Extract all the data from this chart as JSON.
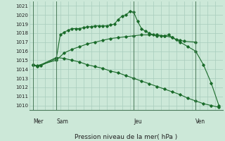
{
  "xlabel": "Pression niveau de la mer( hPa )",
  "bg_color": "#cce8d8",
  "grid_color": "#a8ccbc",
  "line_color": "#1a6b2a",
  "vline_color": "#4a7a5a",
  "ylim": [
    1009.5,
    1021.5
  ],
  "yticks": [
    1010,
    1011,
    1012,
    1013,
    1014,
    1015,
    1016,
    1017,
    1018,
    1019,
    1020,
    1021
  ],
  "xlim": [
    0,
    25
  ],
  "day_labels": [
    "Mer",
    "Sam",
    "Jeu",
    "Ven"
  ],
  "day_positions": [
    0.5,
    3.5,
    13.5,
    21.5
  ],
  "vline_positions": [
    0.5,
    3.5,
    13.5,
    21.5
  ],
  "series1_x": [
    0.5,
    1.0,
    1.5,
    3.5,
    4.0,
    4.5,
    5.0,
    5.5,
    6.0,
    6.5,
    7.0,
    7.5,
    8.0,
    8.5,
    9.0,
    9.5,
    10.0,
    10.5,
    11.0,
    11.5,
    12.0,
    12.5,
    13.0,
    13.5,
    14.0,
    14.5,
    15.0,
    15.5,
    16.0,
    16.5,
    17.0,
    17.5,
    18.0,
    18.5,
    19.0,
    19.5,
    20.0,
    21.5
  ],
  "series1_y": [
    1014.5,
    1014.3,
    1014.4,
    1015.2,
    1017.8,
    1018.1,
    1018.3,
    1018.5,
    1018.5,
    1018.5,
    1018.6,
    1018.7,
    1018.7,
    1018.8,
    1018.8,
    1018.8,
    1018.8,
    1018.9,
    1019.0,
    1019.5,
    1019.9,
    1020.0,
    1020.4,
    1020.3,
    1019.3,
    1018.5,
    1018.2,
    1018.0,
    1017.8,
    1017.7,
    1017.7,
    1017.7,
    1017.8,
    1017.5,
    1017.3,
    1017.2,
    1017.1,
    1017.0
  ],
  "series2_x": [
    0.5,
    1.0,
    3.5,
    4.5,
    5.5,
    6.5,
    7.5,
    8.5,
    9.5,
    10.5,
    11.5,
    12.5,
    13.5,
    14.5,
    15.5,
    16.5,
    17.5,
    18.5,
    19.5,
    20.5,
    21.5,
    22.5,
    23.5,
    24.5
  ],
  "series2_y": [
    1014.5,
    1014.4,
    1015.0,
    1015.8,
    1016.2,
    1016.5,
    1016.8,
    1017.0,
    1017.2,
    1017.4,
    1017.5,
    1017.6,
    1017.7,
    1017.8,
    1017.8,
    1017.8,
    1017.7,
    1017.5,
    1017.0,
    1016.5,
    1016.0,
    1014.5,
    1012.5,
    1010.0
  ],
  "series3_x": [
    0.5,
    1.0,
    3.5,
    4.5,
    5.5,
    6.5,
    7.5,
    8.5,
    9.5,
    10.5,
    11.5,
    12.5,
    13.5,
    14.5,
    15.5,
    16.5,
    17.5,
    18.5,
    19.5,
    20.5,
    21.5,
    22.5,
    23.5,
    24.5
  ],
  "series3_y": [
    1014.5,
    1014.3,
    1015.3,
    1015.2,
    1015.0,
    1014.8,
    1014.5,
    1014.3,
    1014.1,
    1013.8,
    1013.6,
    1013.3,
    1013.0,
    1012.7,
    1012.4,
    1012.1,
    1011.8,
    1011.5,
    1011.2,
    1010.8,
    1010.5,
    1010.2,
    1010.0,
    1009.8
  ]
}
